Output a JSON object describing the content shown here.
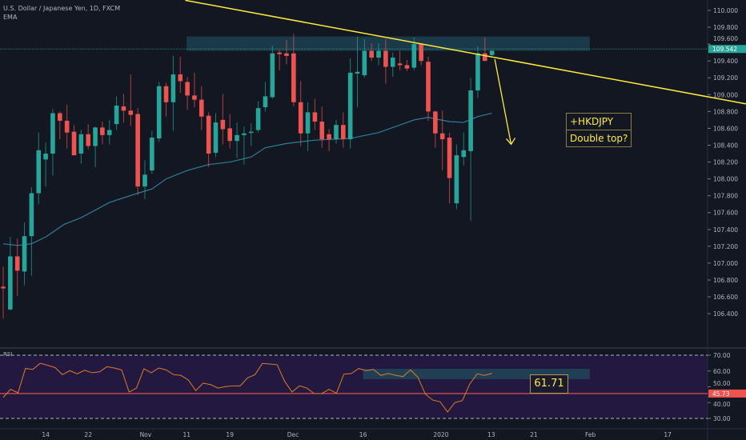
{
  "header": {
    "title": "U.S. Dollar / Japanese Yen, 1D, FXCM",
    "indicator": "EMA"
  },
  "annotations": {
    "line1": "+HKDJPY",
    "line2": "Double top?",
    "rsi_label": "61.71"
  },
  "colors": {
    "bg": "#131722",
    "up": "#26a69a",
    "down": "#ef5350",
    "ema": "#2e7d9a",
    "trend": "#ffeb3b",
    "rsi": "#e07b28",
    "rsi_bg": "#2a1a4a",
    "zone": "#1f4a5a"
  },
  "chart_data": [
    {
      "type": "candlestick",
      "title": "U.S. Dollar / Japanese Yen, 1D, FXCM",
      "ylim": [
        106.3,
        110.12
      ],
      "price_ticks": [
        "110.000",
        "109.800",
        "109.600",
        "109.400",
        "109.200",
        "109.000",
        "108.800",
        "108.600",
        "108.400",
        "108.200",
        "108.000",
        "107.800",
        "107.600",
        "107.400",
        "107.200",
        "107.000",
        "106.800",
        "106.600",
        "106.400"
      ],
      "last_price": "109.542",
      "time_labels": [
        {
          "label": "14",
          "at": 6
        },
        {
          "label": "22",
          "at": 12
        },
        {
          "label": "Nov",
          "at": 20.1
        },
        {
          "label": "11",
          "at": 25.9
        },
        {
          "label": "19",
          "at": 32
        },
        {
          "label": "Dec",
          "at": 40.9
        },
        {
          "label": "16",
          "at": 50.8
        },
        {
          "label": "2020",
          "at": 61.8
        },
        {
          "label": "13",
          "at": 68.9
        },
        {
          "label": "21",
          "at": 74.9
        },
        {
          "label": "Feb",
          "at": 82.9
        },
        {
          "label": "17",
          "at": 93.8
        }
      ],
      "candles": [
        [
          106.72,
          106.96,
          106.34,
          106.7
        ],
        [
          106.45,
          107.31,
          106.44,
          107.08
        ],
        [
          107.08,
          107.29,
          106.61,
          106.91
        ],
        [
          106.9,
          107.48,
          106.74,
          107.32
        ],
        [
          107.32,
          107.9,
          106.85,
          107.83
        ],
        [
          107.83,
          108.55,
          107.7,
          108.34
        ],
        [
          108.23,
          108.43,
          107.91,
          108.3
        ],
        [
          108.3,
          108.83,
          108.04,
          108.78
        ],
        [
          108.78,
          108.8,
          108.47,
          108.69
        ],
        [
          108.69,
          108.88,
          108.36,
          108.55
        ],
        [
          108.56,
          108.64,
          108.28,
          108.28
        ],
        [
          108.3,
          108.58,
          108.18,
          108.53
        ],
        [
          108.53,
          108.65,
          108.35,
          108.39
        ],
        [
          108.39,
          108.62,
          108.14,
          108.61
        ],
        [
          108.61,
          108.68,
          108.41,
          108.52
        ],
        [
          108.52,
          108.7,
          108.41,
          108.58
        ],
        [
          108.65,
          108.98,
          108.58,
          108.87
        ],
        [
          108.86,
          109.01,
          108.67,
          108.81
        ],
        [
          108.81,
          109.24,
          108.63,
          108.76
        ],
        [
          108.77,
          108.84,
          107.81,
          107.91
        ],
        [
          107.91,
          108.22,
          107.76,
          108.05
        ],
        [
          108.1,
          108.57,
          108.06,
          108.49
        ],
        [
          108.48,
          109.15,
          108.44,
          109.1
        ],
        [
          109.1,
          109.14,
          108.74,
          108.91
        ],
        [
          108.91,
          109.46,
          108.57,
          109.24
        ],
        [
          109.24,
          109.45,
          109.02,
          109.16
        ],
        [
          109.15,
          109.21,
          108.82,
          108.99
        ],
        [
          108.99,
          109.26,
          108.85,
          108.94
        ],
        [
          108.94,
          109.1,
          108.58,
          108.74
        ],
        [
          108.75,
          108.79,
          108.14,
          108.3
        ],
        [
          108.31,
          108.78,
          108.26,
          108.67
        ],
        [
          108.7,
          109.01,
          108.41,
          108.59
        ],
        [
          108.6,
          108.77,
          108.36,
          108.45
        ],
        [
          108.45,
          108.67,
          108.25,
          108.52
        ],
        [
          108.52,
          108.62,
          108.17,
          108.54
        ],
        [
          108.55,
          108.66,
          108.39,
          108.56
        ],
        [
          108.58,
          108.92,
          108.55,
          108.84
        ],
        [
          108.85,
          109.15,
          108.8,
          108.98
        ],
        [
          108.97,
          109.58,
          108.95,
          109.49
        ],
        [
          109.5,
          109.53,
          109.29,
          109.48
        ],
        [
          109.49,
          109.65,
          109.36,
          109.46
        ],
        [
          109.49,
          109.72,
          108.86,
          108.91
        ],
        [
          108.91,
          109.16,
          108.39,
          108.54
        ],
        [
          108.54,
          108.91,
          108.33,
          108.79
        ],
        [
          108.79,
          108.95,
          108.58,
          108.68
        ],
        [
          108.68,
          108.86,
          108.37,
          108.47
        ],
        [
          108.53,
          108.59,
          108.33,
          108.47
        ],
        [
          108.47,
          108.7,
          108.42,
          108.64
        ],
        [
          108.64,
          108.79,
          108.37,
          108.47
        ],
        [
          108.47,
          109.43,
          108.36,
          109.26
        ],
        [
          109.25,
          109.69,
          108.85,
          109.27
        ],
        [
          109.23,
          109.66,
          109.2,
          109.52
        ],
        [
          109.52,
          109.61,
          109.4,
          109.44
        ],
        [
          109.44,
          109.61,
          109.35,
          109.52
        ],
        [
          109.52,
          109.66,
          109.13,
          109.33
        ],
        [
          109.33,
          109.5,
          109.21,
          109.44
        ],
        [
          109.37,
          109.52,
          109.29,
          109.35
        ],
        [
          109.35,
          109.41,
          109.28,
          109.31
        ],
        [
          109.32,
          109.68,
          109.29,
          109.6
        ],
        [
          109.6,
          109.61,
          109.35,
          109.4
        ],
        [
          109.39,
          109.45,
          108.69,
          108.8
        ],
        [
          108.8,
          108.81,
          108.37,
          108.54
        ],
        [
          108.54,
          108.81,
          108.1,
          108.47
        ],
        [
          108.49,
          108.55,
          107.71,
          108.01
        ],
        [
          107.71,
          108.41,
          107.64,
          108.28
        ],
        [
          108.26,
          108.55,
          108.16,
          108.34
        ],
        [
          108.33,
          109.2,
          107.5,
          109.05
        ],
        [
          109.05,
          109.57,
          108.96,
          109.49
        ],
        [
          109.49,
          109.68,
          109.4,
          109.4
        ],
        [
          109.47,
          109.53,
          109.46,
          109.52
        ]
      ],
      "ema": [
        [
          0,
          107.23
        ],
        [
          2,
          107.21
        ],
        [
          4,
          107.23
        ],
        [
          6,
          107.31
        ],
        [
          8.6,
          107.46
        ],
        [
          11,
          107.54
        ],
        [
          15,
          107.72
        ],
        [
          19,
          107.83
        ],
        [
          21,
          107.88
        ],
        [
          23,
          108.0
        ],
        [
          26,
          108.1
        ],
        [
          29,
          108.17
        ],
        [
          32,
          108.2
        ],
        [
          35,
          108.26
        ],
        [
          37,
          108.37
        ],
        [
          40,
          108.42
        ],
        [
          44,
          108.46
        ],
        [
          49,
          108.48
        ],
        [
          53,
          108.55
        ],
        [
          58,
          108.7
        ],
        [
          60,
          108.73
        ],
        [
          63,
          108.68
        ],
        [
          65,
          108.67
        ],
        [
          67,
          108.74
        ],
        [
          69,
          108.78
        ]
      ],
      "zone": {
        "from": 25.9,
        "to": 82.8,
        "low": 109.52,
        "high": 109.69
      },
      "trendline": [
        [
          25.7,
          110.12
        ],
        [
          104.9,
          108.89
        ]
      ],
      "arrow": [
        [
          69.4,
          109.42
        ],
        [
          71.7,
          108.41
        ]
      ]
    },
    {
      "type": "line",
      "title": "RSI",
      "ylim": [
        25,
        75
      ],
      "ticks": [
        "70.00",
        "60.00",
        "50.00",
        "40.00",
        "30.00"
      ],
      "bands": [
        70,
        30
      ],
      "level": 45.73,
      "level_label": "45.73",
      "zone": {
        "from": 50.8,
        "to": 82.8,
        "low": 54.8,
        "high": 61.4
      },
      "values": [
        43.3,
        48.4,
        46.2,
        61.6,
        61.0,
        64.9,
        63.6,
        62.2,
        57.7,
        60.2,
        58.2,
        60.5,
        58.9,
        59.5,
        62.7,
        61.9,
        60.7,
        46.7,
        49.2,
        61.4,
        58.9,
        61.9,
        60.7,
        57.7,
        57.2,
        54.3,
        47.6,
        52.3,
        51.4,
        49.2,
        50.1,
        50.6,
        50.6,
        55.7,
        57.7,
        64.8,
        64.4,
        63.9,
        53.5,
        46.7,
        50.6,
        49.2,
        45.7,
        45.7,
        48.4,
        46.0,
        58.0,
        58.4,
        61.6,
        60.2,
        61.0,
        57.2,
        58.5,
        57.2,
        56.5,
        60.7,
        56.0,
        45.4,
        41.6,
        40.5,
        34.1,
        40.0,
        41.3,
        51.8,
        58.2,
        57.2,
        58.5
      ]
    }
  ]
}
